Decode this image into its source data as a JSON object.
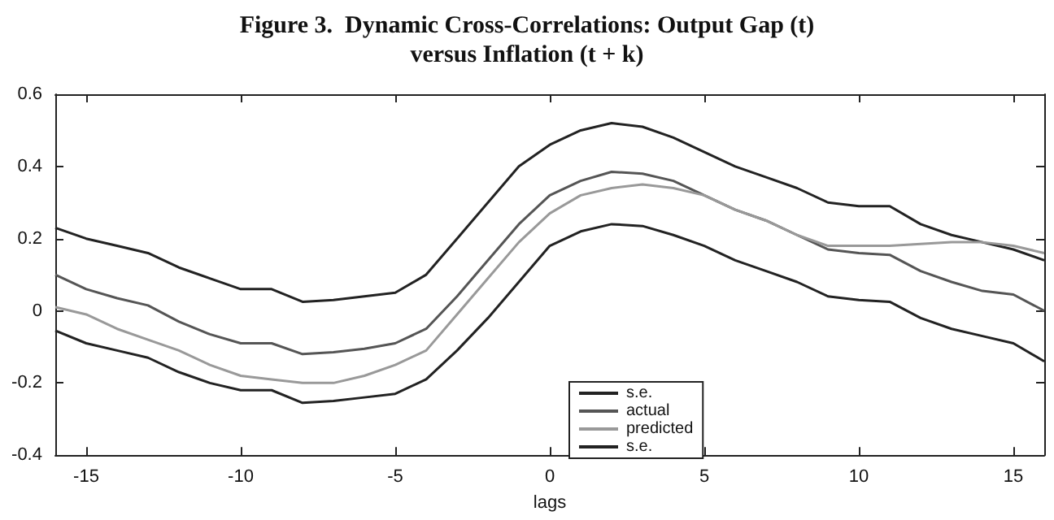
{
  "chart_data": {
    "type": "line",
    "title": "Figure 3.  Dynamic Cross-Correlations: Output Gap (t)\nversus Inflation (t + k)",
    "xlabel": "lags",
    "x": [
      -16,
      -15,
      -14,
      -13,
      -12,
      -11,
      -10,
      -9,
      -8,
      -7,
      -6,
      -5,
      -4,
      -3,
      -2,
      -1,
      0,
      1,
      2,
      3,
      4,
      5,
      6,
      7,
      8,
      9,
      10,
      11,
      12,
      13,
      14,
      15,
      16
    ],
    "series": [
      {
        "name": "s.e.",
        "color": "#222222",
        "values": [
          0.23,
          0.2,
          0.18,
          0.16,
          0.12,
          0.09,
          0.06,
          0.06,
          0.025,
          0.03,
          0.04,
          0.05,
          0.1,
          0.2,
          0.3,
          0.4,
          0.46,
          0.5,
          0.52,
          0.51,
          0.48,
          0.44,
          0.4,
          0.37,
          0.34,
          0.3,
          0.29,
          0.29,
          0.24,
          0.21,
          0.19,
          0.17,
          0.14
        ]
      },
      {
        "name": "actual",
        "color": "#555555",
        "values": [
          0.1,
          0.06,
          0.035,
          0.015,
          -0.03,
          -0.065,
          -0.09,
          -0.09,
          -0.12,
          -0.115,
          -0.105,
          -0.09,
          -0.05,
          0.04,
          0.14,
          0.24,
          0.32,
          0.36,
          0.385,
          0.38,
          0.36,
          0.32,
          0.28,
          0.25,
          0.21,
          0.17,
          0.16,
          0.155,
          0.11,
          0.08,
          0.055,
          0.045,
          0.0
        ]
      },
      {
        "name": "predicted",
        "color": "#999999",
        "values": [
          0.01,
          -0.01,
          -0.05,
          -0.08,
          -0.11,
          -0.15,
          -0.18,
          -0.19,
          -0.2,
          -0.2,
          -0.18,
          -0.15,
          -0.11,
          -0.01,
          0.09,
          0.19,
          0.27,
          0.32,
          0.34,
          0.35,
          0.34,
          0.32,
          0.28,
          0.25,
          0.21,
          0.18,
          0.18,
          0.18,
          0.185,
          0.19,
          0.19,
          0.18,
          0.16
        ]
      },
      {
        "name": "s.e.",
        "color": "#222222",
        "values": [
          -0.055,
          -0.09,
          -0.11,
          -0.13,
          -0.17,
          -0.2,
          -0.22,
          -0.22,
          -0.255,
          -0.25,
          -0.24,
          -0.23,
          -0.19,
          -0.11,
          -0.02,
          0.08,
          0.18,
          0.22,
          0.24,
          0.235,
          0.21,
          0.18,
          0.14,
          0.11,
          0.08,
          0.04,
          0.03,
          0.025,
          -0.02,
          -0.05,
          -0.07,
          -0.09,
          -0.14
        ]
      }
    ],
    "xlim": [
      -16,
      16
    ],
    "xticks": [
      -15,
      -10,
      -5,
      0,
      5,
      10,
      15
    ],
    "ylim": [
      -0.4,
      0.6
    ],
    "yticks": [
      -0.4,
      -0.2,
      0,
      0.2,
      0.4,
      0.6
    ],
    "grid": false,
    "legend": "bottom",
    "marker": "none",
    "line_style": "solid"
  }
}
